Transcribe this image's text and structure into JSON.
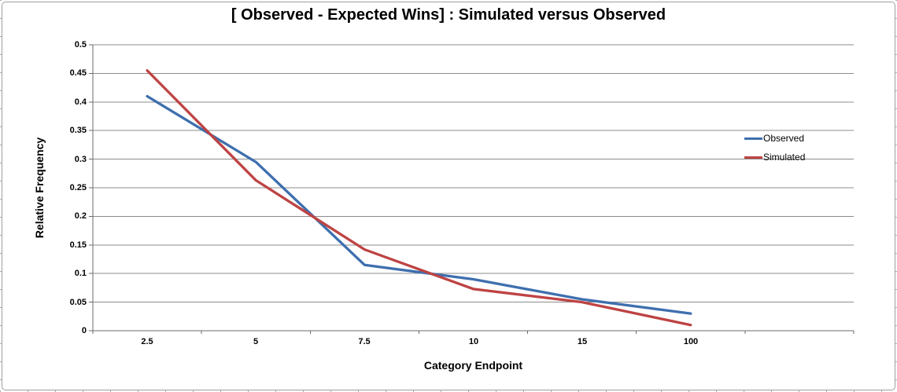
{
  "frame": {
    "border_color": "#9E9E9E",
    "edge_mark_color": "#ACACAC"
  },
  "chart_data": {
    "type": "line",
    "title": "[ Observed - Expected Wins] : Simulated versus Observed",
    "xlabel": "Category Endpoint",
    "ylabel": "Relative Frequency",
    "categories": [
      "2.5",
      "5",
      "7.5",
      "10",
      "15",
      "100"
    ],
    "series": [
      {
        "name": "Observed",
        "color": "#3E6FAE",
        "values": [
          0.41,
          0.295,
          0.115,
          0.09,
          0.055,
          0.03
        ]
      },
      {
        "name": "Simulated",
        "color": "#BE4343",
        "values": [
          0.455,
          0.263,
          0.142,
          0.073,
          0.05,
          0.01
        ]
      }
    ],
    "ylim": [
      0,
      0.5
    ],
    "y_tick_labels": [
      "0.5",
      "0.45",
      "0.4",
      "0.35",
      "0.3",
      "0.25",
      "0.2",
      "0.15",
      "0.1",
      "0.05",
      "0"
    ],
    "grid": true,
    "grid_color": "#8C8C8C",
    "axis_color": "#6B6B6B",
    "line_width": 3.3,
    "legend_position": "right-inside",
    "num_category_slots": 7
  }
}
